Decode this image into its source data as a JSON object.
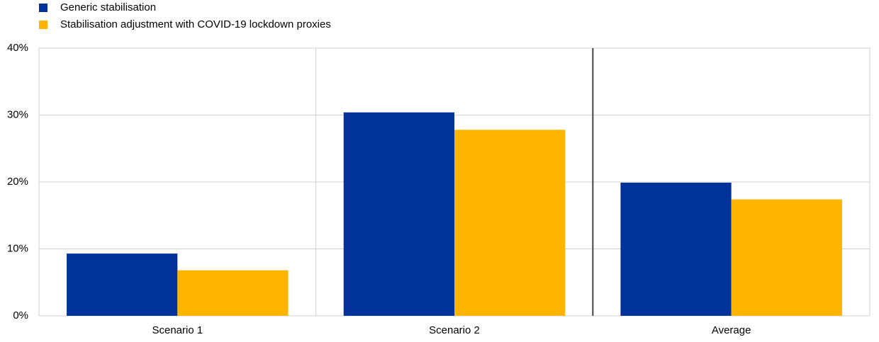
{
  "chart_data": {
    "type": "bar",
    "categories": [
      "Scenario 1",
      "Scenario 2",
      "Average"
    ],
    "series": [
      {
        "name": "Generic stabilisation",
        "color": "#003299",
        "values": [
          9.3,
          30.4,
          19.9
        ]
      },
      {
        "name": "Stabilisation adjustment with COVID-19 lockdown proxies",
        "color": "#ffb400",
        "values": [
          6.8,
          27.8,
          17.4
        ]
      }
    ],
    "ylim": [
      0,
      40
    ],
    "yticks": [
      {
        "value": 0,
        "label": "0%"
      },
      {
        "value": 10,
        "label": "10%"
      },
      {
        "value": 20,
        "label": "20%"
      },
      {
        "value": 30,
        "label": "30%"
      },
      {
        "value": 40,
        "label": "40%"
      }
    ],
    "grid": true,
    "legend": "top-left"
  }
}
